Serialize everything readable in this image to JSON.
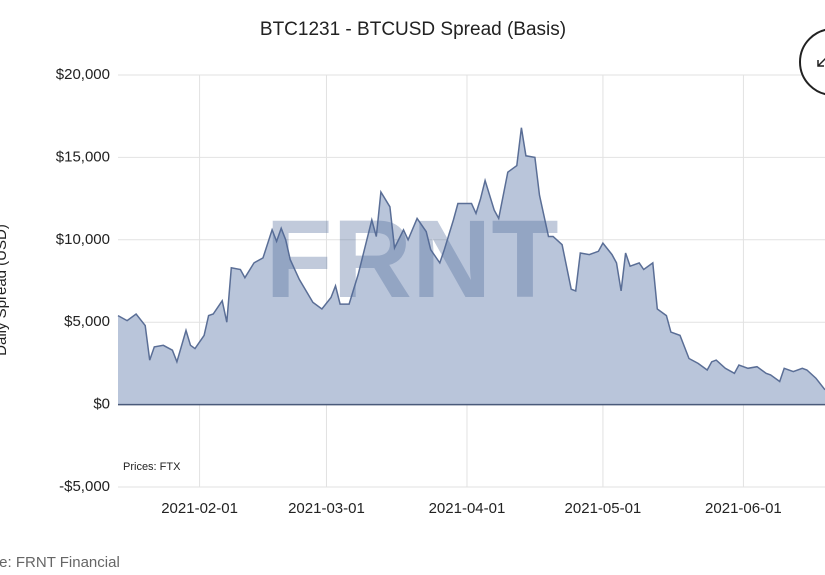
{
  "chart_data": {
    "type": "area",
    "title": "BTC1231 - BTCUSD Spread (Basis)",
    "y_label": "Daily Spread (USD)",
    "watermark": "FRNT",
    "annotation": "Prices: FTX",
    "source": "Source: FRNT Financial",
    "color": "#5a6e96",
    "fill": "#b9c5da",
    "grid": true,
    "xlim": [
      "2021-01-14",
      "2021-06-19"
    ],
    "xticks": [
      "2021-02-01",
      "2021-03-01",
      "2021-04-01",
      "2021-05-01",
      "2021-06-01"
    ],
    "ylim": [
      -5000,
      20000
    ],
    "yticks": [
      {
        "value": -5000,
        "label": "-$5,000"
      },
      {
        "value": 0,
        "label": "$0"
      },
      {
        "value": 5000,
        "label": "$5,000"
      },
      {
        "value": 10000,
        "label": "$10,000"
      },
      {
        "value": 15000,
        "label": "$15,000"
      },
      {
        "value": 20000,
        "label": "$20,000"
      }
    ],
    "x": [
      "2021-01-14",
      "2021-01-16",
      "2021-01-18",
      "2021-01-20",
      "2021-01-21",
      "2021-01-22",
      "2021-01-24",
      "2021-01-26",
      "2021-01-27",
      "2021-01-29",
      "2021-01-30",
      "2021-01-31",
      "2021-02-02",
      "2021-02-03",
      "2021-02-04",
      "2021-02-06",
      "2021-02-07",
      "2021-02-08",
      "2021-02-10",
      "2021-02-11",
      "2021-02-13",
      "2021-02-15",
      "2021-02-17",
      "2021-02-18",
      "2021-02-19",
      "2021-02-20",
      "2021-02-21",
      "2021-02-23",
      "2021-02-26",
      "2021-02-28",
      "2021-03-02",
      "2021-03-03",
      "2021-03-04",
      "2021-03-06",
      "2021-03-08",
      "2021-03-11",
      "2021-03-12",
      "2021-03-13",
      "2021-03-15",
      "2021-03-16",
      "2021-03-18",
      "2021-03-19",
      "2021-03-21",
      "2021-03-23",
      "2021-03-24",
      "2021-03-26",
      "2021-03-27",
      "2021-03-29",
      "2021-03-30",
      "2021-04-02",
      "2021-04-03",
      "2021-04-04",
      "2021-04-05",
      "2021-04-07",
      "2021-04-08",
      "2021-04-10",
      "2021-04-12",
      "2021-04-13",
      "2021-04-14",
      "2021-04-16",
      "2021-04-17",
      "2021-04-19",
      "2021-04-20",
      "2021-04-22",
      "2021-04-24",
      "2021-04-25",
      "2021-04-26",
      "2021-04-28",
      "2021-04-30",
      "2021-05-01",
      "2021-05-03",
      "2021-05-04",
      "2021-05-05",
      "2021-05-06",
      "2021-05-07",
      "2021-05-09",
      "2021-05-10",
      "2021-05-12",
      "2021-05-13",
      "2021-05-15",
      "2021-05-16",
      "2021-05-18",
      "2021-05-20",
      "2021-05-22",
      "2021-05-24",
      "2021-05-25",
      "2021-05-26",
      "2021-05-28",
      "2021-05-30",
      "2021-05-31",
      "2021-06-02",
      "2021-06-04",
      "2021-06-06",
      "2021-06-07",
      "2021-06-09",
      "2021-06-10",
      "2021-06-12",
      "2021-06-14",
      "2021-06-15",
      "2021-06-17",
      "2021-06-19"
    ],
    "values": [
      5400,
      5100,
      5500,
      4800,
      2700,
      3500,
      3600,
      3300,
      2600,
      4500,
      3600,
      3400,
      4200,
      5400,
      5500,
      6300,
      5000,
      8300,
      8200,
      7700,
      8600,
      8900,
      10600,
      9900,
      10700,
      10000,
      8800,
      7600,
      6200,
      5800,
      6500,
      7200,
      6100,
      6100,
      7900,
      11200,
      10200,
      12900,
      12000,
      9500,
      10600,
      10000,
      11300,
      10500,
      9400,
      8600,
      9400,
      11200,
      12200,
      12200,
      11600,
      12500,
      13600,
      11800,
      11300,
      14100,
      14500,
      16800,
      15100,
      15000,
      12700,
      10200,
      10200,
      9700,
      7000,
      6900,
      9200,
      9100,
      9300,
      9800,
      9100,
      8600,
      6900,
      9200,
      8400,
      8600,
      8200,
      8600,
      5800,
      5400,
      4400,
      4200,
      2800,
      2500,
      2100,
      2600,
      2700,
      2200,
      1900,
      2400,
      2200,
      2300,
      1900,
      1800,
      1400,
      2200,
      2000,
      2200,
      2100,
      1600,
      900
    ]
  }
}
